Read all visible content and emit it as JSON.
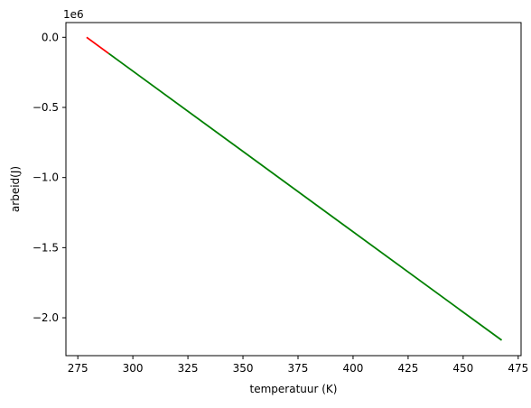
{
  "chart_data": {
    "type": "line",
    "title": "",
    "xlabel": "temperatuur (K)",
    "ylabel": "arbeid(J)",
    "y_offset_label": "1e6",
    "y_scale": 1000000,
    "xlim": [
      269.6,
      476.3
    ],
    "ylim": [
      -2270000,
      105000
    ],
    "x_ticks": [
      275,
      300,
      325,
      350,
      375,
      400,
      425,
      450,
      475
    ],
    "y_ticks": [
      0.0,
      -0.5,
      -1.0,
      -1.5,
      -2.0
    ],
    "x_tick_labels": [
      "275",
      "300",
      "325",
      "350",
      "375",
      "400",
      "425",
      "450",
      "475"
    ],
    "y_tick_labels": [
      "0.0",
      "−0.5",
      "−1.0",
      "−1.5",
      "−2.0"
    ],
    "grid": false,
    "legend": false,
    "series": [
      {
        "color": "#ff0000",
        "x": [
          279,
          289
        ],
        "y": [
          0,
          -115000
        ]
      },
      {
        "color": "#008000",
        "x": [
          289,
          467.5
        ],
        "y": [
          -115000,
          -2160000
        ]
      }
    ]
  }
}
